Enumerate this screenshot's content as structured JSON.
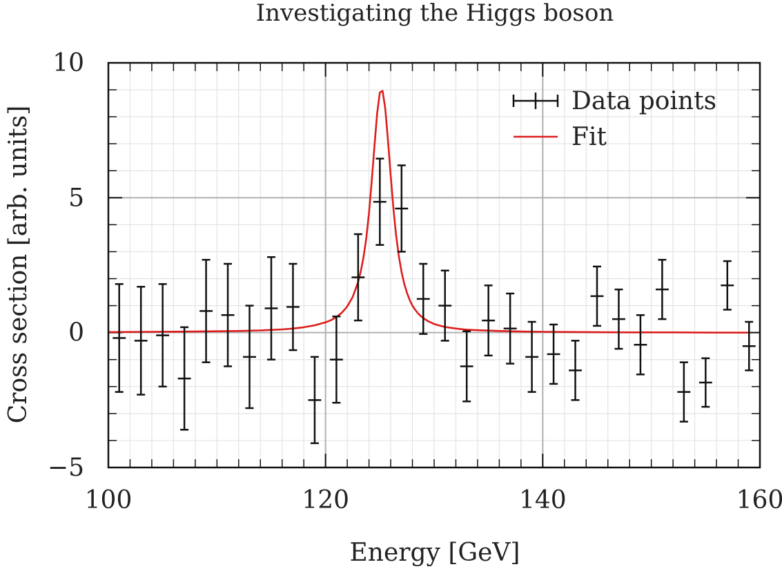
{
  "chart_data": {
    "type": "scatter",
    "title": "Investigating the Higgs boson",
    "xlabel": "Energy [GeV]",
    "ylabel": "Cross section [arb. units]",
    "xlim": [
      100,
      160
    ],
    "ylim": [
      -5,
      10
    ],
    "xticks": [
      100,
      120,
      140,
      160
    ],
    "xtick_labels": [
      "100",
      "120",
      "140",
      "160"
    ],
    "yticks": [
      -5,
      0,
      5,
      10
    ],
    "ytick_labels": [
      "−5",
      "0",
      "5",
      "10"
    ],
    "grid": true,
    "legend": {
      "placement": "top-right",
      "entries": [
        "Data points",
        "Fit"
      ]
    },
    "series": [
      {
        "name": "Data points",
        "type": "errorbar",
        "color": "#111111",
        "x": [
          101,
          103,
          105,
          107,
          109,
          111,
          113,
          115,
          117,
          119,
          121,
          123,
          125,
          127,
          129,
          131,
          133,
          135,
          137,
          139,
          141,
          143,
          145,
          147,
          149,
          151,
          153,
          155,
          157,
          159
        ],
        "y": [
          -0.2,
          -0.3,
          -0.1,
          -1.7,
          0.8,
          0.65,
          -0.9,
          0.9,
          0.95,
          -2.5,
          -1.0,
          2.05,
          4.85,
          4.6,
          1.25,
          1.0,
          -1.25,
          0.45,
          0.15,
          -0.9,
          -0.8,
          -1.4,
          1.35,
          0.5,
          -0.45,
          1.6,
          -2.2,
          -1.85,
          1.75,
          -0.5
        ],
        "xerr": [
          0.6,
          0.6,
          0.6,
          0.6,
          0.6,
          0.6,
          0.6,
          0.6,
          0.6,
          0.6,
          0.6,
          0.6,
          0.6,
          0.6,
          0.6,
          0.6,
          0.6,
          0.6,
          0.6,
          0.6,
          0.6,
          0.6,
          0.6,
          0.6,
          0.6,
          0.6,
          0.6,
          0.6,
          0.6,
          0.6
        ],
        "yerr": [
          2.0,
          2.0,
          1.9,
          1.9,
          1.9,
          1.9,
          1.9,
          1.9,
          1.6,
          1.6,
          1.6,
          1.6,
          1.6,
          1.6,
          1.3,
          1.3,
          1.3,
          1.3,
          1.3,
          1.3,
          1.1,
          1.1,
          1.1,
          1.1,
          1.1,
          1.1,
          1.1,
          0.9,
          0.9,
          0.9
        ]
      },
      {
        "name": "Fit",
        "type": "line",
        "color": "#dd1c1c",
        "x": [
          100,
          104,
          108,
          110,
          112,
          114,
          116,
          117,
          118,
          119,
          120,
          120.5,
          121,
          121.5,
          122,
          122.5,
          123,
          123.25,
          123.5,
          123.75,
          124,
          124.25,
          124.5,
          124.75,
          125,
          125.25,
          125.5,
          125.75,
          126,
          126.25,
          126.5,
          126.75,
          127,
          127.25,
          127.5,
          127.75,
          128,
          128.25,
          128.5,
          128.75,
          129,
          129.5,
          130,
          130.5,
          131,
          132,
          133,
          134,
          136,
          138,
          140,
          144,
          148,
          152,
          156,
          159
        ],
        "y": [
          0.02,
          0.03,
          0.04,
          0.05,
          0.06,
          0.08,
          0.12,
          0.15,
          0.2,
          0.27,
          0.38,
          0.46,
          0.58,
          0.74,
          0.97,
          1.32,
          1.88,
          2.28,
          2.8,
          3.5,
          4.43,
          5.6,
          6.9,
          8.12,
          8.9,
          8.96,
          8.3,
          7.13,
          5.81,
          4.6,
          3.6,
          2.83,
          2.25,
          1.81,
          1.47,
          1.21,
          1.0,
          0.85,
          0.72,
          0.62,
          0.54,
          0.41,
          0.32,
          0.26,
          0.21,
          0.15,
          0.11,
          0.09,
          0.06,
          0.04,
          0.03,
          0.02,
          0.01,
          0.01,
          0.0,
          0.0
        ]
      }
    ]
  }
}
